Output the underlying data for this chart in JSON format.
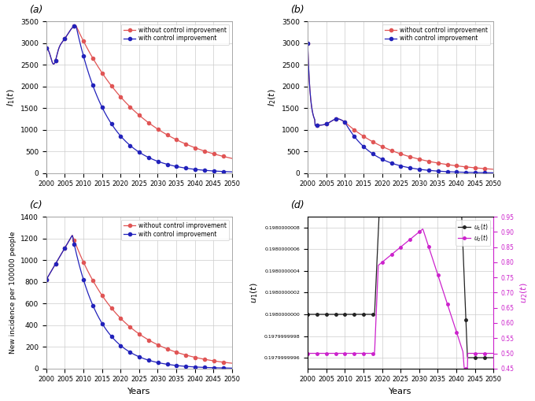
{
  "years_start": 2000,
  "years_end": 2050,
  "n_points": 500,
  "panel_labels": [
    "(a)",
    "(b)",
    "(c)",
    "(d)"
  ],
  "legend_without": "without control improvement",
  "legend_with": "with control improvement",
  "xlabel_cd": "Years",
  "ylabel_a": "$I_1(t)$",
  "ylabel_b": "$I_2(t)$",
  "ylabel_c": "New incidence per 100000 people",
  "ylabel_d_left": "$u_1(t)$",
  "ylabel_d_right": "$u_2(t)$",
  "color_without": "#e05555",
  "color_with": "#2222bb",
  "color_u1": "#222222",
  "color_u2": "#cc22cc",
  "background": "#ffffff",
  "grid_color": "#cccccc",
  "yticks_ab": [
    0,
    500,
    1000,
    1500,
    2000,
    2500,
    3000,
    3500
  ],
  "yticks_c": [
    0,
    200,
    400,
    600,
    800,
    1000,
    1200,
    1400
  ],
  "xticks": [
    2000,
    2005,
    2010,
    2015,
    2020,
    2025,
    2030,
    2035,
    2040,
    2045,
    2050
  ],
  "ylim_ab": [
    0,
    3500
  ],
  "ylim_c": [
    0,
    1400
  ],
  "u1_yticks": [
    0.1979999996,
    0.1979999998,
    0.198,
    0.1980000002,
    0.1980000004,
    0.1980000006,
    0.1980000008
  ],
  "u2_yticks": [
    0.45,
    0.5,
    0.55,
    0.6,
    0.65,
    0.7,
    0.75,
    0.8,
    0.85,
    0.9,
    0.95
  ],
  "u1_ylim": [
    0.1979999995,
    0.1980000009
  ],
  "u2_ylim": [
    0.45,
    0.95
  ]
}
